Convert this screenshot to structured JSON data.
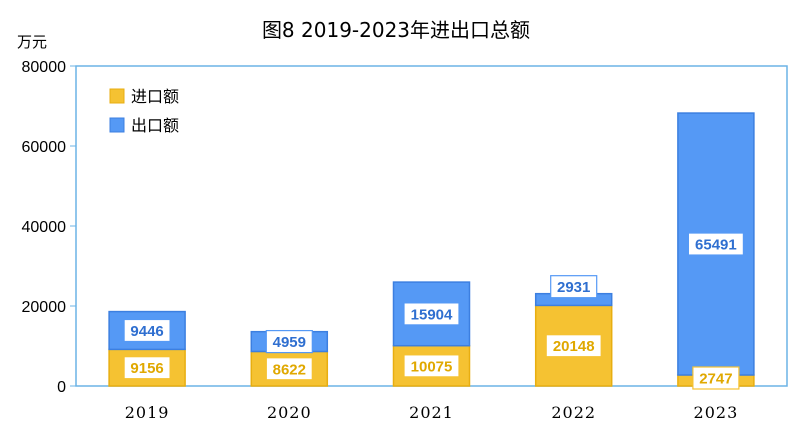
{
  "chart_data": {
    "type": "bar",
    "stacked": true,
    "title": "图8 2019-2023年进出口总额",
    "ylabel": "万元",
    "xlabel": "",
    "categories": [
      "2019",
      "2020",
      "2021",
      "2022",
      "2023"
    ],
    "series": [
      {
        "name": "进口额",
        "values": [
          9156,
          8622,
          10075,
          20148,
          2747
        ],
        "color": "#F5C232"
      },
      {
        "name": "出口额",
        "values": [
          9446,
          4959,
          15904,
          2931,
          65491
        ],
        "color": "#5599F5"
      }
    ],
    "ylim": [
      0,
      80000
    ],
    "yticks": [
      "0",
      "20000",
      "40000",
      "60000",
      "80000"
    ],
    "grid": false,
    "legend": "top-left"
  },
  "colors": {
    "import_label": "#F5C232",
    "export_label": "#5599F5",
    "border": "#6BB3E6"
  }
}
